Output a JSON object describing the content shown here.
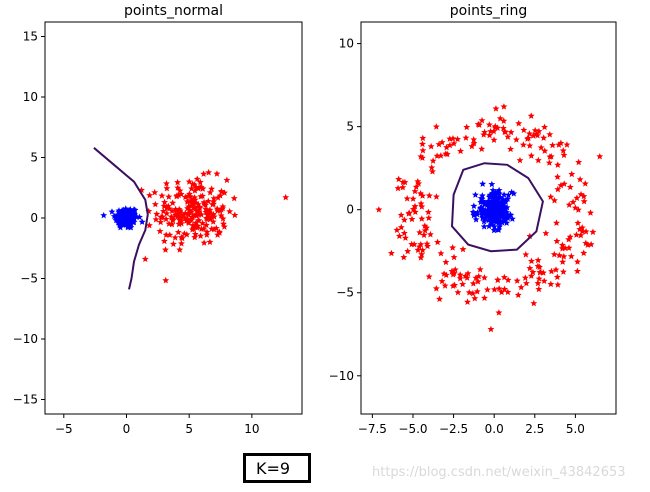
{
  "chart_data": [
    {
      "type": "scatter",
      "title": "points_normal",
      "xlim": [
        -6.5,
        14
      ],
      "ylim": [
        -16.2,
        16.2
      ],
      "xticks": [
        -5,
        0,
        5,
        10
      ],
      "yticks": [
        -15,
        -10,
        -5,
        0,
        5,
        10,
        15
      ],
      "grid": false,
      "series": [
        {
          "color": "#0000ff",
          "marker": "star",
          "cluster": {
            "cx": 0,
            "cy": 0,
            "sx": 0.45,
            "sy": 0.45,
            "n": 160
          }
        },
        {
          "color": "#ff0000",
          "marker": "star",
          "cluster": {
            "cx": 5.3,
            "cy": 0.5,
            "sx": 1.4,
            "sy": 1.35,
            "n": 210
          },
          "extra_points": [
            [
              12.7,
              1.7
            ],
            [
              1.5,
              -3.4
            ],
            [
              1.2,
              2.3
            ]
          ]
        }
      ],
      "decision_boundary": {
        "color": "#3b1060",
        "points": [
          [
            -2.6,
            5.8
          ],
          [
            -1.0,
            4.4
          ],
          [
            0.6,
            3.0
          ],
          [
            1.5,
            1.5
          ],
          [
            1.7,
            0.3
          ],
          [
            1.5,
            -1.0
          ],
          [
            1.0,
            -2.2
          ],
          [
            0.6,
            -3.6
          ],
          [
            0.4,
            -5.0
          ],
          [
            0.2,
            -5.9
          ]
        ]
      }
    },
    {
      "type": "scatter",
      "title": "points_ring",
      "xlim": [
        -8.2,
        7.5
      ],
      "ylim": [
        -12.3,
        11.3
      ],
      "xticks": [
        -7.5,
        -5.0,
        -2.5,
        0.0,
        2.5,
        5.0
      ],
      "yticks": [
        -10,
        -5,
        0,
        5,
        10
      ],
      "grid": false,
      "series": [
        {
          "color": "#0000ff",
          "marker": "star",
          "cluster": {
            "cx": 0,
            "cy": 0,
            "sx": 0.55,
            "sy": 0.5,
            "n": 230
          }
        },
        {
          "color": "#ff0000",
          "marker": "star",
          "ring": {
            "cx": 0,
            "cy": 0,
            "r_mean": 5.1,
            "r_sd": 0.7,
            "n": 260
          },
          "extra_points": [
            [
              -7.1,
              0.0
            ],
            [
              6.5,
              3.2
            ],
            [
              -0.2,
              -7.2
            ],
            [
              0.6,
              6.2
            ]
          ]
        }
      ],
      "decision_boundary": {
        "color": "#3b1060",
        "closed": true,
        "points": [
          [
            -2.5,
            0.9
          ],
          [
            -1.9,
            2.4
          ],
          [
            -0.6,
            2.8
          ],
          [
            0.8,
            2.7
          ],
          [
            2.1,
            1.9
          ],
          [
            3.0,
            0.5
          ],
          [
            2.6,
            -1.3
          ],
          [
            1.4,
            -2.4
          ],
          [
            -0.2,
            -2.5
          ],
          [
            -1.6,
            -2.1
          ],
          [
            -2.6,
            -1.0
          ]
        ]
      }
    }
  ],
  "annotation": {
    "k_label": "K=9"
  },
  "watermark": {
    "text": "https://blog.csdn.net/weixin_43842653"
  }
}
